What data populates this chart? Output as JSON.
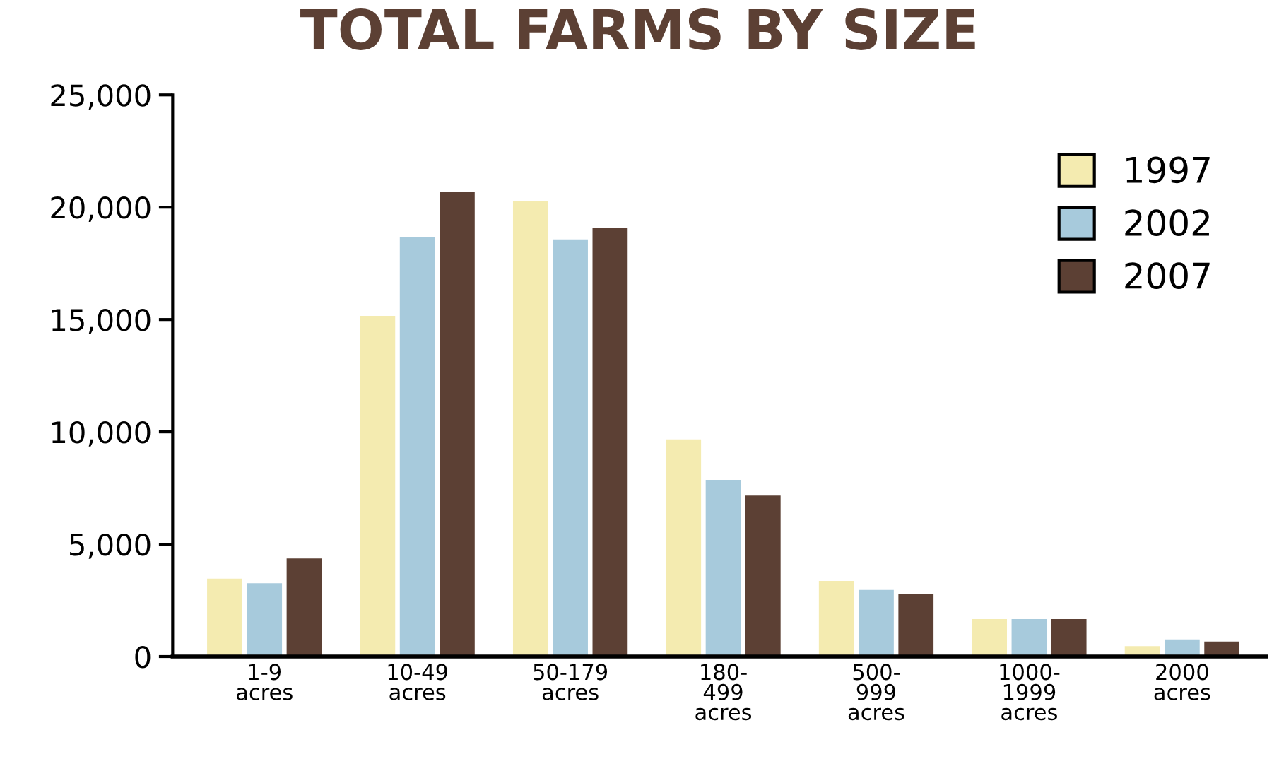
{
  "chart_data": {
    "type": "bar",
    "title": "TOTAL FARMS BY SIZE",
    "categories": [
      "1-9\nacres",
      "10-49\nacres",
      "50-179\nacres",
      "180-\n499\nacres",
      "500-\n999\nacres",
      "1000-\n1999\nacres",
      "2000\nacres"
    ],
    "series": [
      {
        "name": "1997",
        "color": "#f4ebb0",
        "values": [
          3500,
          15200,
          20300,
          9700,
          3400,
          1700,
          500
        ]
      },
      {
        "name": "2002",
        "color": "#a7cadc",
        "values": [
          3300,
          18700,
          18600,
          7900,
          3000,
          1700,
          800
        ]
      },
      {
        "name": "2007",
        "color": "#5c4034",
        "values": [
          4400,
          20700,
          19100,
          7200,
          2800,
          1700,
          700
        ]
      }
    ],
    "ylim": [
      0,
      25000
    ],
    "yticks": [
      {
        "value": 0,
        "label": "0"
      },
      {
        "value": 5000,
        "label": "5,000"
      },
      {
        "value": 10000,
        "label": "10,000"
      },
      {
        "value": 15000,
        "label": "15,000"
      },
      {
        "value": 20000,
        "label": "20,000"
      },
      {
        "value": 25000,
        "label": "25,000"
      }
    ],
    "grid": false,
    "legend": "top right"
  }
}
